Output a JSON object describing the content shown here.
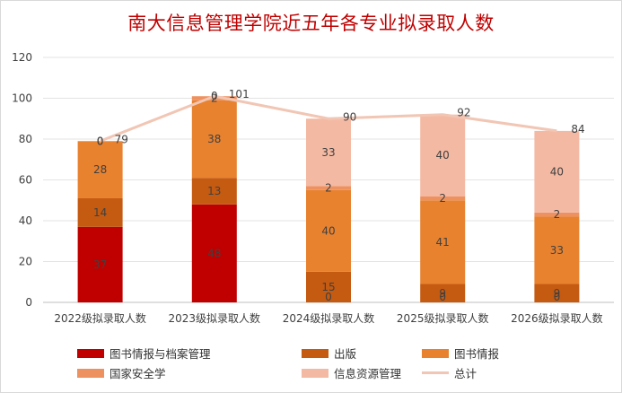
{
  "title": "南大信息管理学院近五年各专业拟录取人数",
  "chart_data": {
    "type": "bar",
    "stacked": true,
    "title": "南大信息管理学院近五年各专业拟录取人数",
    "categories": [
      "2022级拟录取人数",
      "2023级拟录取人数",
      "2024级拟录取人数",
      "2025级拟录取人数",
      "2026级拟录取人数"
    ],
    "ylim": [
      0,
      120
    ],
    "yticks": [
      "0",
      "20",
      "40",
      "60",
      "80",
      "100",
      "120"
    ],
    "grid": true,
    "legend_position": "bottom",
    "series": [
      {
        "name": "图书情报与档案管理",
        "color": "#c00000",
        "values": [
          37,
          48,
          0,
          0,
          0
        ],
        "labels": [
          "37",
          "48",
          "0",
          "0",
          "0"
        ]
      },
      {
        "name": "出版",
        "color": "#c55a11",
        "values": [
          14,
          13,
          15,
          9,
          9
        ],
        "labels": [
          "14",
          "13",
          "15",
          "9",
          "9"
        ]
      },
      {
        "name": "图书情报",
        "color": "#e8822f",
        "values": [
          28,
          38,
          40,
          41,
          33
        ],
        "labels": [
          "28",
          "38",
          "40",
          "41",
          "33"
        ]
      },
      {
        "name": "国家安全学",
        "color": "#ee9160",
        "values": [
          0,
          2,
          2,
          2,
          2
        ],
        "labels": [
          "0",
          "2",
          "2",
          "2",
          "2"
        ]
      },
      {
        "name": "信息资源管理",
        "color": "#f4b9a3",
        "values": [
          0,
          0,
          33,
          40,
          40
        ],
        "labels": [
          "0",
          "0",
          "33",
          "40",
          "40"
        ]
      }
    ],
    "total": {
      "name": "总计",
      "color": "#f1c6b4",
      "values": [
        79,
        101,
        90,
        92,
        84
      ]
    }
  }
}
